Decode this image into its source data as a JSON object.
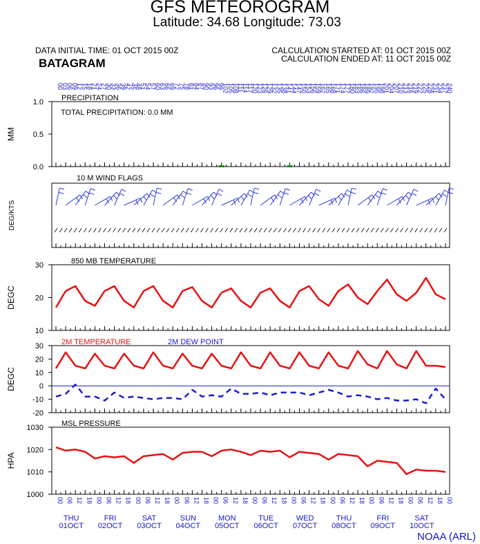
{
  "header": {
    "title": "GFS METEOROGRAM",
    "subtitle": "Latitude: 34.68 Longitude:  73.03",
    "data_initial_time": "DATA INITIAL TIME: 01 OCT 2015 00Z",
    "calc_started": "CALCULATION STARTED AT: 01 OCT 2015 00Z",
    "calc_ended": "CALCULATION ENDED AT: 11 OCT 2015 00Z",
    "station": "BATAGRAM"
  },
  "credit": "NOAA (ARL)",
  "colors": {
    "temp": "#e81010",
    "dew": "#1a1ad8",
    "wind": "#2a3ad8",
    "axis": "#000000",
    "label_blue": "#1515c8",
    "precip_bar": "#1a8a1a"
  },
  "chart_data": [
    {
      "type": "bar",
      "ylabel": "MM",
      "panel_title": "PRECIPITATION",
      "annotation": "TOTAL PRECIPITATION:   0.0 MM",
      "ylim": [
        0,
        1
      ],
      "yticks": [
        "1.0",
        "0.5",
        "0.0"
      ],
      "x_hours": [
        102,
        144
      ],
      "values": [
        0.01,
        0.01
      ]
    },
    {
      "type": "line",
      "panel_title": "10 M  WIND FLAGS",
      "ylabel": "DEG/KTS",
      "direction_labels_hidden": true
    },
    {
      "type": "line",
      "panel_title": "850 MB  TEMPERATURE",
      "ylabel": "DEGC",
      "ylim": [
        10,
        30
      ],
      "yticks": [
        "30",
        "20",
        "10"
      ],
      "x_hours": [
        0,
        6,
        12,
        18,
        24,
        30,
        36,
        42,
        48,
        54,
        60,
        66,
        72,
        78,
        84,
        90,
        96,
        102,
        108,
        114,
        120,
        126,
        132,
        138,
        144,
        150,
        156,
        162,
        168,
        174,
        180,
        186,
        192,
        198,
        204,
        210,
        216,
        222,
        228,
        234,
        240
      ],
      "series": [
        {
          "name": "850 MB TEMPERATURE",
          "values": [
            17,
            22,
            23.5,
            19,
            17.5,
            22,
            23.5,
            19,
            17,
            22,
            23.5,
            19,
            17,
            22,
            23.2,
            19,
            17,
            21.5,
            22.8,
            19,
            17,
            21.5,
            22.8,
            19,
            17,
            22,
            23.5,
            19.5,
            17.5,
            22,
            24,
            20,
            18,
            22,
            25.5,
            21,
            19,
            21.5,
            26,
            21,
            19.5
          ]
        }
      ]
    },
    {
      "type": "line",
      "ylabel": "DEGC",
      "ylim": [
        -20,
        30
      ],
      "yticks": [
        "30",
        "20",
        "10",
        "0",
        "-10",
        "-20"
      ],
      "x_hours": [
        0,
        6,
        12,
        18,
        24,
        30,
        36,
        42,
        48,
        54,
        60,
        66,
        72,
        78,
        84,
        90,
        96,
        102,
        108,
        114,
        120,
        126,
        132,
        138,
        144,
        150,
        156,
        162,
        168,
        174,
        180,
        186,
        192,
        198,
        204,
        210,
        216,
        222,
        228,
        234,
        240
      ],
      "series": [
        {
          "name": "2M TEMPERATURE",
          "values": [
            13,
            25,
            15,
            13,
            24,
            15,
            13,
            24,
            15,
            13,
            25,
            15,
            13,
            24,
            15,
            13,
            24,
            15,
            13,
            25,
            15,
            13,
            25,
            15,
            13,
            25,
            15,
            13,
            25,
            15,
            13,
            26,
            16,
            13,
            26,
            16,
            13,
            26,
            15,
            15,
            14
          ]
        },
        {
          "name": "2M  DEW POINT",
          "values": [
            -8,
            -6,
            1,
            -8,
            -8,
            -11,
            -5,
            -9,
            -8,
            -9,
            -10,
            -9,
            -9,
            -10,
            -3,
            -8,
            -7,
            -8,
            -2,
            -6,
            -6,
            -5,
            -7,
            -5,
            -5,
            -5,
            -7,
            -5,
            -3,
            -5,
            -8,
            -7,
            -8,
            -10,
            -9,
            -11,
            -11,
            -10,
            -13,
            -2,
            -10
          ]
        }
      ]
    },
    {
      "type": "line",
      "panel_title": "MSL PRESSURE",
      "ylabel": "HPA",
      "ylim": [
        1000,
        1030
      ],
      "yticks": [
        "1030",
        "1020",
        "1010",
        "1000"
      ],
      "x_hours": [
        0,
        6,
        12,
        18,
        24,
        30,
        36,
        42,
        48,
        54,
        60,
        66,
        72,
        78,
        84,
        90,
        96,
        102,
        108,
        114,
        120,
        126,
        132,
        138,
        144,
        150,
        156,
        162,
        168,
        174,
        180,
        186,
        192,
        198,
        204,
        210,
        216,
        222,
        228,
        234,
        240
      ],
      "series": [
        {
          "name": "MSL PRESSURE",
          "values": [
            1021,
            1019.5,
            1020,
            1019,
            1016,
            1017,
            1016.5,
            1017,
            1014,
            1017,
            1017.5,
            1018,
            1015.5,
            1018.5,
            1019,
            1019,
            1017,
            1019.5,
            1020,
            1019,
            1017.5,
            1019.5,
            1019,
            1019.5,
            1016.5,
            1019,
            1018.5,
            1018,
            1015.5,
            1018,
            1017.5,
            1017,
            1012.5,
            1015,
            1014.5,
            1014,
            1009,
            1011,
            1010.5,
            1010.5,
            1010
          ]
        }
      ]
    }
  ],
  "x_axis": {
    "hour_labels": [
      "00",
      "03",
      "06",
      "09",
      "12",
      "15",
      "18",
      "21",
      "24",
      "27",
      "30",
      "33",
      "36",
      "39",
      "42",
      "45",
      "48",
      "51",
      "54",
      "57",
      "60",
      "63",
      "66",
      "69",
      "72",
      "75",
      "78",
      "81",
      "84",
      "87",
      "90",
      "93",
      "96",
      "99",
      "102",
      "105",
      "108",
      "111",
      "114",
      "117",
      "120",
      "123",
      "126",
      "129",
      "132",
      "135",
      "138",
      "141",
      "144",
      "147",
      "150",
      "153",
      "156",
      "159",
      "162",
      "165",
      "168",
      "171",
      "174",
      "177",
      "180",
      "183",
      "186",
      "189",
      "192",
      "195",
      "198",
      "201",
      "204",
      "207",
      "210",
      "213",
      "216",
      "219",
      "222",
      "225",
      "228",
      "231",
      "234",
      "237",
      "240"
    ],
    "bottom_hour_labels": [
      "00",
      "06",
      "12",
      "18",
      "00",
      "06",
      "12",
      "18",
      "00",
      "06",
      "12",
      "18",
      "00",
      "06",
      "12",
      "18",
      "00",
      "06",
      "12",
      "18",
      "00",
      "06",
      "12",
      "18",
      "00",
      "06",
      "12",
      "18",
      "00",
      "06",
      "12",
      "18",
      "00",
      "06",
      "12",
      "18",
      "00",
      "06",
      "12",
      "18",
      "00"
    ],
    "days": [
      {
        "dow": "THU",
        "date": "01OCT"
      },
      {
        "dow": "FRI",
        "date": "02OCT"
      },
      {
        "dow": "SAT",
        "date": "03OCT"
      },
      {
        "dow": "SUN",
        "date": "04OCT"
      },
      {
        "dow": "MON",
        "date": "05OCT"
      },
      {
        "dow": "TUE",
        "date": "06OCT"
      },
      {
        "dow": "WED",
        "date": "07OCT"
      },
      {
        "dow": "THU",
        "date": "08OCT"
      },
      {
        "dow": "FRI",
        "date": "09OCT"
      },
      {
        "dow": "SAT",
        "date": "10OCT"
      }
    ]
  }
}
